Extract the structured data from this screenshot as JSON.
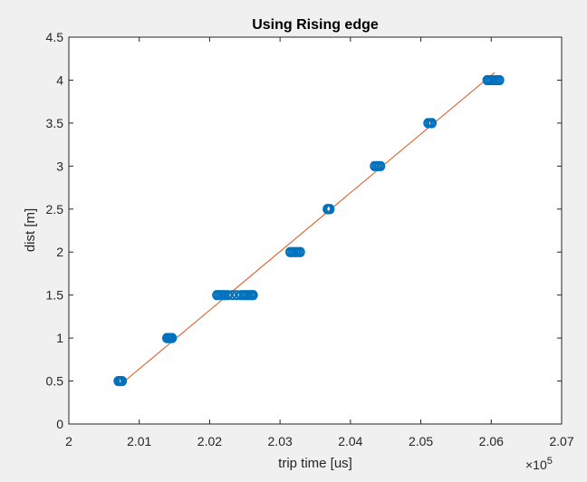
{
  "chart_data": {
    "type": "scatter",
    "title": "Using Rising edge",
    "xlabel": "trip time [us]",
    "ylabel": "dist [m]",
    "x_exponent_label": "×10",
    "x_exponent_power": "5",
    "xlim": [
      2.0,
      2.07
    ],
    "ylim": [
      0,
      4.5
    ],
    "x_ticks": [
      2.0,
      2.01,
      2.02,
      2.03,
      2.04,
      2.05,
      2.06,
      2.07
    ],
    "x_tick_labels": [
      "2",
      "2.01",
      "2.02",
      "2.03",
      "2.04",
      "2.05",
      "2.06",
      "2.07"
    ],
    "y_ticks": [
      0,
      0.5,
      1,
      1.5,
      2,
      2.5,
      3,
      3.5,
      4,
      4.5
    ],
    "y_tick_labels": [
      "0",
      "0.5",
      "1",
      "1.5",
      "2",
      "2.5",
      "3",
      "3.5",
      "4",
      "4.5"
    ],
    "grid": false,
    "series": [
      {
        "marker": "circle-open",
        "color": "#0072BD",
        "points": [
          {
            "x": 2.007,
            "y": 0.5
          },
          {
            "x": 2.0072,
            "y": 0.5
          },
          {
            "x": 2.0074,
            "y": 0.5
          },
          {
            "x": 2.0076,
            "y": 0.5
          },
          {
            "x": 2.0139,
            "y": 1.0
          },
          {
            "x": 2.0141,
            "y": 1.0
          },
          {
            "x": 2.0143,
            "y": 1.0
          },
          {
            "x": 2.0145,
            "y": 1.0
          },
          {
            "x": 2.0147,
            "y": 1.0
          },
          {
            "x": 2.021,
            "y": 1.5
          },
          {
            "x": 2.0213,
            "y": 1.5
          },
          {
            "x": 2.0216,
            "y": 1.5
          },
          {
            "x": 2.0219,
            "y": 1.5
          },
          {
            "x": 2.0222,
            "y": 1.5
          },
          {
            "x": 2.0226,
            "y": 1.5
          },
          {
            "x": 2.0232,
            "y": 1.5
          },
          {
            "x": 2.0238,
            "y": 1.5
          },
          {
            "x": 2.0244,
            "y": 1.5
          },
          {
            "x": 2.0248,
            "y": 1.5
          },
          {
            "x": 2.0251,
            "y": 1.5
          },
          {
            "x": 2.0254,
            "y": 1.5
          },
          {
            "x": 2.0257,
            "y": 1.5
          },
          {
            "x": 2.026,
            "y": 1.5
          },
          {
            "x": 2.0262,
            "y": 1.5
          },
          {
            "x": 2.0314,
            "y": 2.0
          },
          {
            "x": 2.0317,
            "y": 2.0
          },
          {
            "x": 2.032,
            "y": 2.0
          },
          {
            "x": 2.0323,
            "y": 2.0
          },
          {
            "x": 2.0326,
            "y": 2.0
          },
          {
            "x": 2.0329,
            "y": 2.0
          },
          {
            "x": 2.0367,
            "y": 2.5
          },
          {
            "x": 2.0369,
            "y": 2.5
          },
          {
            "x": 2.0371,
            "y": 2.5
          },
          {
            "x": 2.0434,
            "y": 3.0
          },
          {
            "x": 2.0437,
            "y": 3.0
          },
          {
            "x": 2.044,
            "y": 3.0
          },
          {
            "x": 2.0443,
            "y": 3.0
          },
          {
            "x": 2.051,
            "y": 3.5
          },
          {
            "x": 2.0513,
            "y": 3.5
          },
          {
            "x": 2.0516,
            "y": 3.5
          },
          {
            "x": 2.0594,
            "y": 4.0
          },
          {
            "x": 2.0597,
            "y": 4.0
          },
          {
            "x": 2.06,
            "y": 4.0
          },
          {
            "x": 2.0603,
            "y": 4.0
          },
          {
            "x": 2.0606,
            "y": 4.0
          },
          {
            "x": 2.0609,
            "y": 4.0
          },
          {
            "x": 2.0612,
            "y": 4.0
          }
        ]
      },
      {
        "type": "line",
        "color": "#D95319",
        "points": [
          {
            "x": 2.0075,
            "y": 0.47
          },
          {
            "x": 2.0605,
            "y": 4.09
          }
        ]
      }
    ]
  }
}
